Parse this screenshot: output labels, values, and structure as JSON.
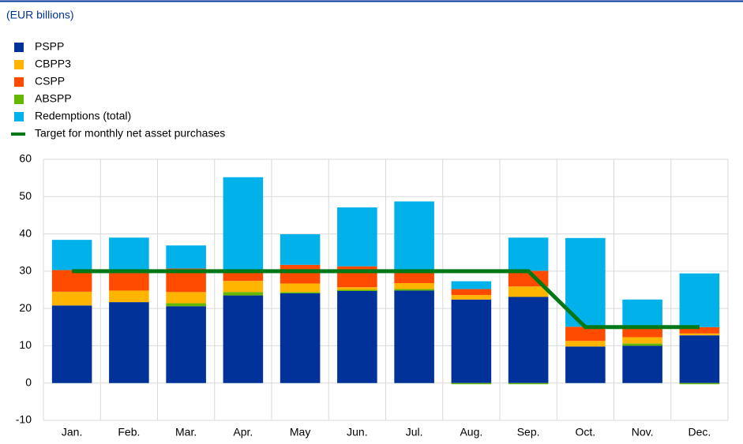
{
  "chart_data": {
    "type": "bar",
    "stacked": true,
    "subtitle": "(EUR billions)",
    "categories": [
      "Jan.",
      "Feb.",
      "Mar.",
      "Apr.",
      "May",
      "Jun.",
      "Jul.",
      "Aug.",
      "Sep.",
      "Oct.",
      "Nov.",
      "Dec."
    ],
    "series": [
      {
        "name": "PSPP",
        "color": "#003299",
        "values": [
          20.8,
          21.7,
          20.6,
          23.5,
          24.1,
          24.8,
          24.8,
          22.4,
          23.1,
          9.8,
          10.0,
          12.8
        ]
      },
      {
        "name": "CBPP3",
        "color": "#ffb400",
        "values": [
          3.7,
          3.1,
          3.0,
          3.0,
          2.3,
          0.7,
          1.6,
          1.2,
          2.8,
          1.5,
          1.7,
          0.5
        ]
      },
      {
        "name": "CSPP",
        "color": "#ff4b00",
        "values": [
          5.8,
          4.7,
          6.3,
          2.2,
          5.0,
          5.6,
          3.0,
          1.6,
          4.2,
          3.8,
          2.3,
          1.7
        ]
      },
      {
        "name": "ABSPP",
        "color": "#65b800",
        "values": [
          0,
          0,
          0.8,
          0.9,
          0.3,
          0.2,
          0.4,
          -0.3,
          -0.2,
          0,
          0.6,
          -0.2
        ]
      },
      {
        "name": "Redemptions (total)",
        "color": "#00b1ea",
        "values": [
          8.1,
          9.5,
          6.2,
          25.6,
          8.2,
          15.8,
          18.9,
          2.1,
          8.9,
          23.8,
          7.8,
          14.4
        ]
      },
      {
        "name": "Target for monthly net asset purchases",
        "color": "#007816",
        "type": "line",
        "values": [
          30,
          30,
          30,
          30,
          30,
          30,
          30,
          30,
          30,
          15,
          15,
          15
        ]
      }
    ],
    "ylim": [
      -10,
      60
    ],
    "yticks": [
      -10,
      0,
      10,
      20,
      30,
      40,
      50,
      60
    ],
    "grid": true
  }
}
